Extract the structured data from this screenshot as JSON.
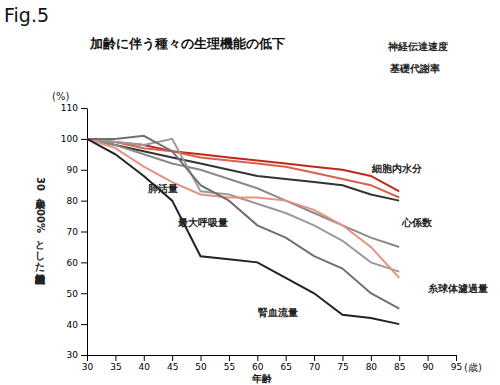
{
  "chart_data": {
    "type": "line",
    "title": "加齢に伴う種々の生理機能の低下",
    "x_label": "年齢",
    "y_label": "30歳を100%とした相対的機能",
    "annotations": [
      "Fig.5",
      "(%)",
      "(歳)"
    ],
    "x": [
      30,
      35,
      40,
      45,
      50,
      55,
      60,
      65,
      70,
      75,
      80,
      85
    ],
    "xlim": [
      30,
      95
    ],
    "xticks": [
      30,
      35,
      40,
      45,
      50,
      55,
      60,
      65,
      70,
      75,
      80,
      85,
      90,
      95
    ],
    "ylim": [
      30,
      110
    ],
    "yticks": [
      30,
      40,
      50,
      60,
      70,
      80,
      90,
      100,
      110
    ],
    "grid": false,
    "series": [
      {
        "name": "神経伝達速度",
        "color": "#c0281c",
        "values": [
          100,
          99,
          98,
          96,
          95,
          94,
          93,
          92,
          91,
          90,
          88,
          83
        ]
      },
      {
        "name": "基礎代謝率",
        "color": "#d9604f",
        "values": [
          100,
          99,
          97,
          96,
          94,
          93,
          92,
          91,
          89,
          87,
          85,
          81
        ]
      },
      {
        "name": "細胞内水分",
        "color": "#333333",
        "values": [
          100,
          98,
          96,
          94,
          92,
          90,
          88,
          87,
          86,
          85,
          82,
          80
        ]
      },
      {
        "name": "心係数",
        "color": "#8a8a8a",
        "values": [
          100,
          98,
          95,
          92,
          90,
          87,
          84,
          80,
          76,
          72,
          68,
          65
        ]
      },
      {
        "name": "糸球体濾過量",
        "color": "#9a9a9a",
        "values": [
          100,
          99,
          98,
          100,
          83,
          82,
          79,
          76,
          72,
          67,
          60,
          57
        ]
      },
      {
        "name": "肺活量",
        "color": "#e8907f",
        "values": [
          100,
          97,
          91,
          86,
          82,
          81,
          81,
          80,
          77,
          72,
          65,
          55
        ]
      },
      {
        "name": "最大呼吸量",
        "color": "#707070",
        "values": [
          100,
          100,
          101,
          96,
          85,
          80,
          72,
          68,
          62,
          58,
          50,
          45
        ]
      },
      {
        "name": "腎血流量",
        "color": "#222222",
        "values": [
          100,
          95,
          88,
          80,
          62,
          61,
          60,
          55,
          50,
          43,
          42,
          40
        ]
      }
    ]
  }
}
